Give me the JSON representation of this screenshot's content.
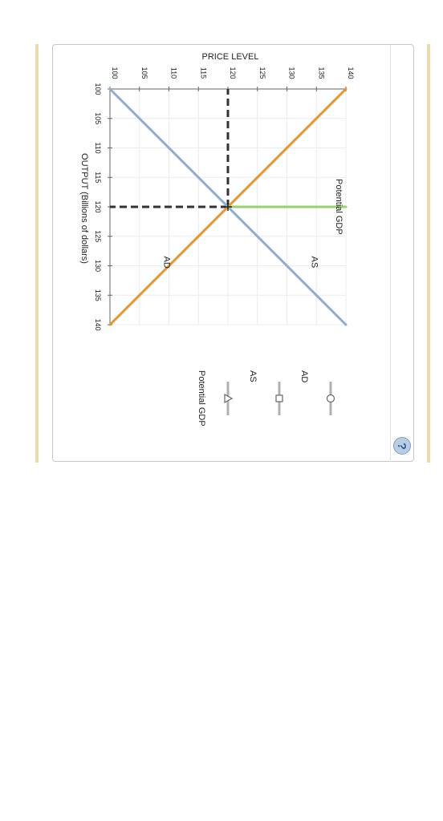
{
  "chart_data": {
    "type": "line",
    "xlabel": "OUTPUT (Billions of dollars)",
    "ylabel": "PRICE LEVEL",
    "xlim": [
      100,
      140
    ],
    "ylim": [
      100,
      140
    ],
    "x_ticks": [
      100,
      105,
      110,
      115,
      120,
      125,
      130,
      135,
      140
    ],
    "y_ticks": [
      100,
      105,
      110,
      115,
      120,
      125,
      130,
      135,
      140
    ],
    "grid": true,
    "series": [
      {
        "name": "AD",
        "color": "#f0922c",
        "points": [
          [
            100,
            140
          ],
          [
            140,
            100
          ]
        ],
        "label": "AD",
        "label_at": [
          130,
          110
        ]
      },
      {
        "name": "AS",
        "color": "#8caed0",
        "points": [
          [
            100,
            100
          ],
          [
            140,
            140
          ]
        ],
        "label": "AS",
        "label_at": [
          130,
          135
        ]
      },
      {
        "name": "Potential GDP",
        "color": "#97d16c",
        "points": [
          [
            120,
            120
          ],
          [
            120,
            140
          ]
        ],
        "label": "Potential GDP",
        "label_at": [
          120,
          140
        ]
      }
    ],
    "guides": [
      {
        "from": [
          120,
          120
        ],
        "to": [
          100,
          120
        ]
      },
      {
        "from": [
          120,
          120
        ],
        "to": [
          120,
          100
        ]
      }
    ],
    "equilibrium": [
      120,
      120
    ],
    "legend": {
      "placement": "right",
      "items": [
        {
          "label": "AD",
          "marker": "circle",
          "color": "#b0b0b0"
        },
        {
          "label": "AS",
          "marker": "square",
          "color": "#b0b0b0"
        },
        {
          "label": "Potential GDP",
          "marker": "triangle",
          "color": "#b0b0b0"
        }
      ]
    }
  },
  "help": {
    "label": "?"
  }
}
